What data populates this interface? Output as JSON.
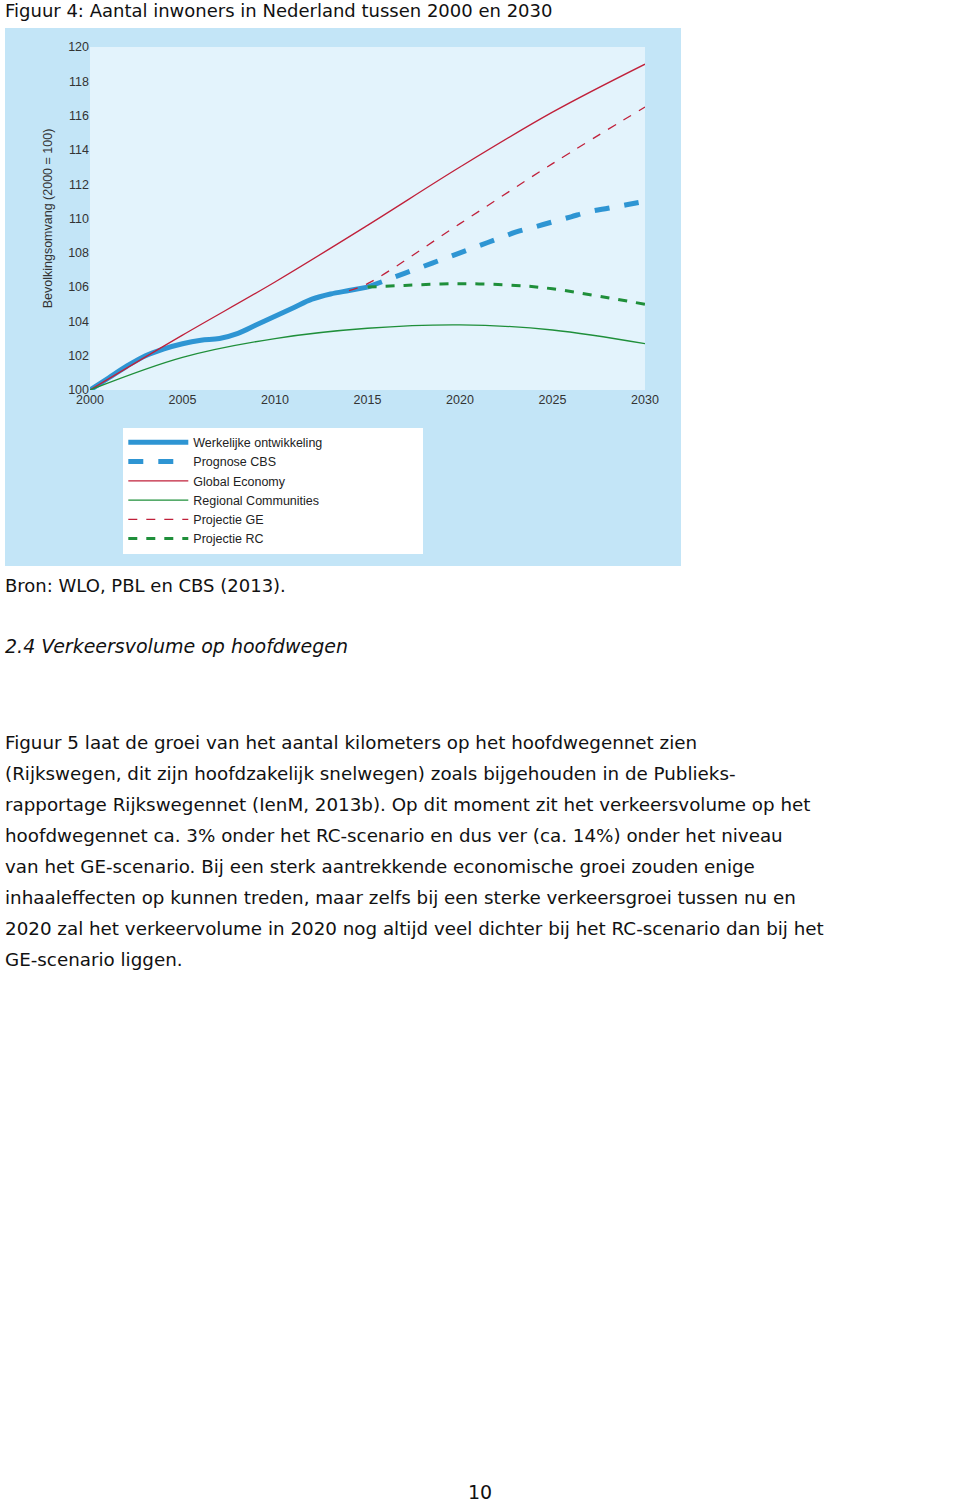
{
  "figure_title": "Figuur 4: Aantal inwoners in Nederland tussen 2000 en 2030",
  "chart_data": {
    "type": "line",
    "y_label": "Bevolkingsomvang (2000 = 100)",
    "xlim": [
      2000,
      2030
    ],
    "xticks": [
      2000,
      2005,
      2010,
      2015,
      2020,
      2025,
      2030
    ],
    "ylim": [
      100,
      120
    ],
    "yticks": [
      100,
      102,
      104,
      106,
      108,
      110,
      112,
      114,
      116,
      118,
      120
    ],
    "grid": false,
    "legend": "bottom",
    "series": [
      {
        "name": "Werkelijke ontwikkeling",
        "color": "#2e95d3",
        "line_style": "thick",
        "x": [
          2000,
          2001,
          2002,
          2003,
          2004,
          2005,
          2006,
          2007,
          2008,
          2009,
          2010,
          2011,
          2012,
          2013,
          2014,
          2015
        ],
        "values": [
          100,
          100.7,
          101.4,
          102.0,
          102.4,
          102.7,
          102.9,
          103.0,
          103.3,
          103.8,
          104.3,
          104.8,
          105.3,
          105.6,
          105.8,
          106.0
        ]
      },
      {
        "name": "Prognose CBS",
        "color": "#2e95d3",
        "line_style": "thick-dash",
        "x": [
          2015,
          2016,
          2017,
          2018,
          2019,
          2020,
          2021,
          2022,
          2023,
          2024,
          2025,
          2026,
          2027,
          2028,
          2029,
          2030
        ],
        "values": [
          106.0,
          106.4,
          106.8,
          107.2,
          107.6,
          108.0,
          108.4,
          108.8,
          109.2,
          109.5,
          109.8,
          110.1,
          110.4,
          110.6,
          110.8,
          111.0
        ]
      },
      {
        "name": "Global Economy",
        "color": "#c0203a",
        "line_style": "solid",
        "x": [
          2000,
          2005,
          2010,
          2015,
          2020,
          2025,
          2030
        ],
        "values": [
          100,
          103.2,
          106.3,
          109.6,
          113.0,
          116.2,
          119.0
        ]
      },
      {
        "name": "Regional Communities",
        "color": "#1f8f3a",
        "line_style": "solid",
        "x": [
          2000,
          2005,
          2010,
          2015,
          2020,
          2025,
          2030
        ],
        "values": [
          100,
          101.9,
          103.0,
          103.6,
          103.8,
          103.5,
          102.7
        ]
      },
      {
        "name": "Projectie GE",
        "color": "#c0203a",
        "line_style": "dash",
        "x": [
          2014,
          2015,
          2020,
          2025,
          2030
        ],
        "values": [
          105.8,
          106.2,
          109.7,
          113.2,
          116.5
        ]
      },
      {
        "name": "Projectie RC",
        "color": "#1f8f3a",
        "line_style": "thick-dash",
        "x": [
          2015,
          2017,
          2020,
          2023,
          2025,
          2030
        ],
        "values": [
          106.0,
          106.1,
          106.2,
          106.1,
          105.9,
          105.0
        ]
      }
    ]
  },
  "source": "Bron: WLO, PBL en CBS (2013).",
  "heading": "2.4 Verkeersvolume op hoofdwegen",
  "paragraph_lines": [
    "Figuur 5 laat de groei van het aantal kilometers op het hoofdwegennet zien",
    "(Rijkswegen, dit zijn hoofdzakelijk snelwegen) zoals bijgehouden in de Publieks-",
    "rapportage Rijkswegennet (IenM, 2013b). Op dit moment zit het verkeersvolume op het",
    "hoofdwegennet ca. 3% onder het RC-scenario en dus ver (ca. 14%) onder het niveau",
    "van het GE-scenario. Bij een sterk aantrekkende economische groei zouden enige",
    "inhaaleffecten op kunnen treden, maar zelfs bij een sterke verkeersgroei tussen nu en",
    "2020 zal het verkeervolume in 2020 nog altijd veel dichter bij het RC-scenario dan bij het",
    "GE-scenario liggen."
  ],
  "page_number": "10"
}
